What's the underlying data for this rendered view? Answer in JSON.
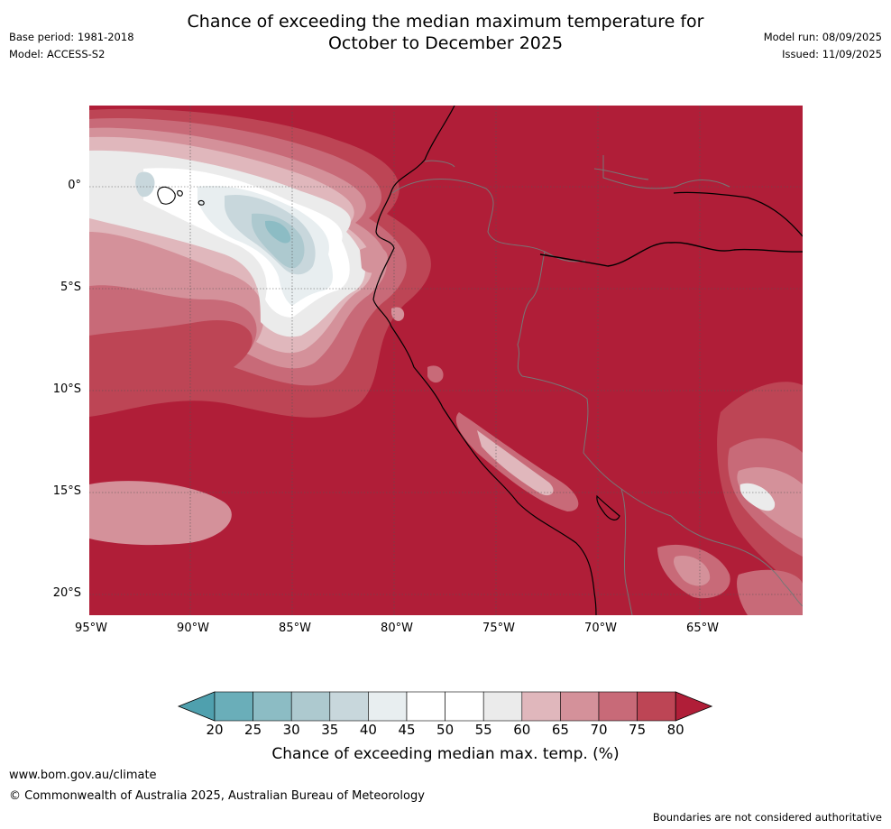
{
  "title_line1": "Chance of exceeding the median maximum temperature for",
  "title_line2": "October to December 2025",
  "base_period": "Base period: 1981-2018",
  "model": "Model: ACCESS-S2",
  "model_run": "Model run: 08/09/2025",
  "issued": "Issued: 11/09/2025",
  "lat_labels": [
    "0°",
    "5°S",
    "10°S",
    "15°S",
    "20°S"
  ],
  "lon_labels": [
    "95°W",
    "90°W",
    "85°W",
    "80°W",
    "75°W",
    "70°W",
    "65°W"
  ],
  "colorbar": {
    "ticks": [
      "20",
      "25",
      "30",
      "35",
      "40",
      "45",
      "50",
      "55",
      "60",
      "65",
      "70",
      "75",
      "80"
    ],
    "colors": [
      "#4fa0ae",
      "#6aaeb9",
      "#8cbcc4",
      "#adc9cf",
      "#c8d7dc",
      "#e8eef0",
      "#ffffff",
      "#ffffff",
      "#ebebeb",
      "#e0b7bc",
      "#d4919a",
      "#c86a78",
      "#bd4555",
      "#b01e38"
    ],
    "title": "Chance of exceeding median max. temp. (%)"
  },
  "footer": {
    "url": "www.bom.gov.au/climate",
    "copyright": "© Commonwealth of Australia 2025, Australian Bureau of Meteorology",
    "disclaimer": "Boundaries are not considered authoritative"
  }
}
